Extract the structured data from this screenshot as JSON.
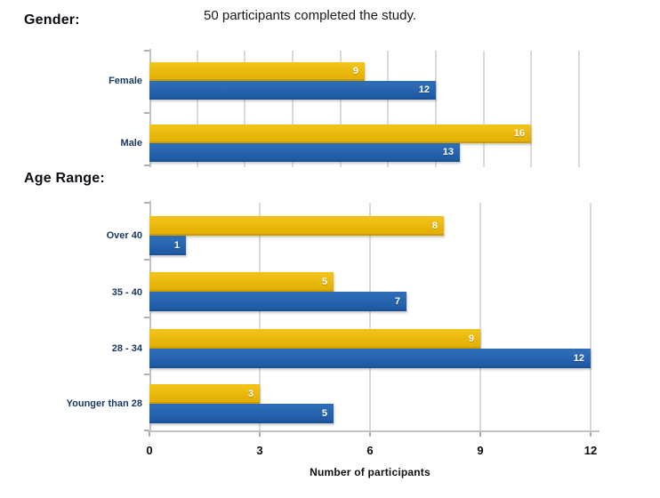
{
  "header": {
    "title": "50 participants completed the study."
  },
  "sections": {
    "gender_heading": "Gender:",
    "age_heading": "Age Range:"
  },
  "colors": {
    "bar_yellow": "#E8B606",
    "bar_blue": "#2563AC",
    "gridline": "#DADADA",
    "axis": "#C2C2C2",
    "category_label": "#17375E",
    "value_label": "#FFFFFF",
    "heading_text": "#0C0C14"
  },
  "chart_data": [
    {
      "type": "bar",
      "orientation": "horizontal",
      "section": "Gender",
      "categories": [
        "Female",
        "Male"
      ],
      "series": [
        {
          "name": "yellow-series",
          "color": "#E8B606",
          "values": [
            9,
            16
          ]
        },
        {
          "name": "blue-series",
          "color": "#2563AC",
          "values": [
            12,
            13
          ]
        }
      ],
      "xlim": [
        0,
        18
      ],
      "gridline_step": 2,
      "x_tick_labels": [],
      "xlabel": "",
      "grid": true,
      "legend": "none",
      "value_labels": "inside-end"
    },
    {
      "type": "bar",
      "orientation": "horizontal",
      "section": "Age Range",
      "categories": [
        "Over 40",
        "35 - 40",
        "28 - 34",
        "Younger than 28"
      ],
      "series": [
        {
          "name": "yellow-series",
          "color": "#E8B606",
          "values": [
            8,
            5,
            9,
            3
          ]
        },
        {
          "name": "blue-series",
          "color": "#2563AC",
          "values": [
            1,
            7,
            12,
            5
          ]
        }
      ],
      "xlim": [
        0,
        12
      ],
      "gridline_step": 3,
      "x_tick_labels": [
        "0",
        "3",
        "6",
        "9",
        "12"
      ],
      "xlabel": "Number of participants",
      "grid": true,
      "legend": "none",
      "value_labels": "inside-end"
    }
  ]
}
